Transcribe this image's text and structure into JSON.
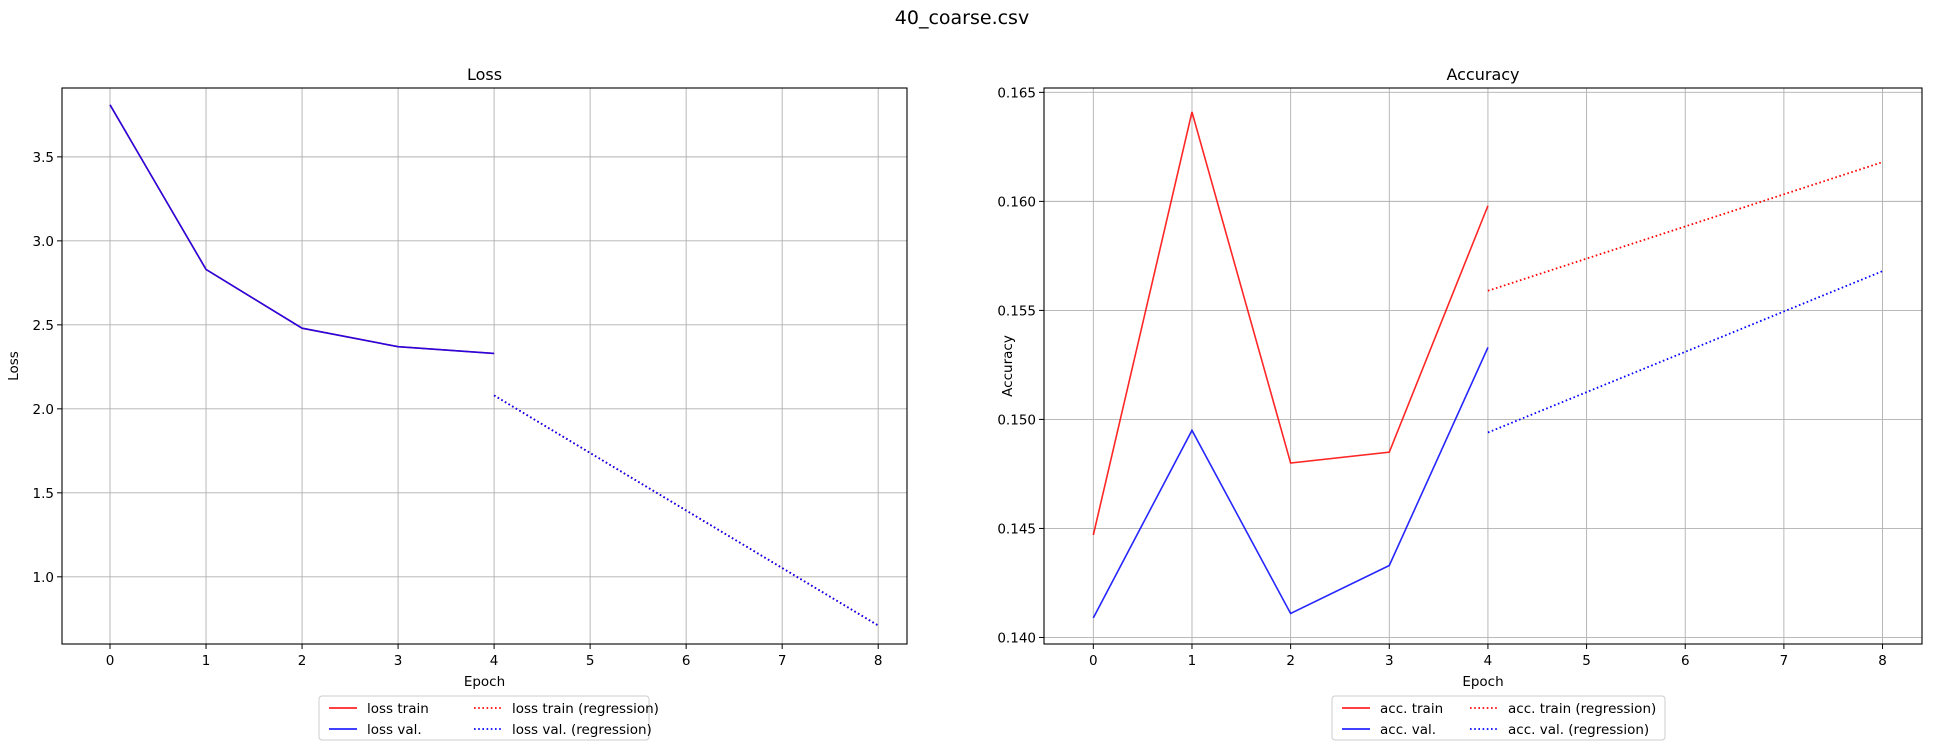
{
  "figure_title": "40_coarse.csv",
  "colors": {
    "train": "#ff0000",
    "val": "#0000ff"
  },
  "chart_data": [
    {
      "type": "line",
      "title": "Loss",
      "xlabel": "Epoch",
      "ylabel": "Loss",
      "xlim": [
        -0.5,
        8.3
      ],
      "ylim": [
        0.6,
        3.91
      ],
      "xticks": [
        0,
        1,
        2,
        3,
        4,
        5,
        6,
        7,
        8
      ],
      "yticks": [
        1.0,
        1.5,
        2.0,
        2.5,
        3.0,
        3.5
      ],
      "ytick_labels": [
        "1.0",
        "1.5",
        "2.0",
        "2.5",
        "3.0",
        "3.5"
      ],
      "grid": true,
      "legend_position": "below",
      "series": [
        {
          "name": "loss train",
          "style": "solid",
          "color": "#ff0000",
          "x": [
            0,
            1,
            2,
            3,
            4
          ],
          "y": [
            3.81,
            2.83,
            2.48,
            2.37,
            2.33
          ]
        },
        {
          "name": "loss val.",
          "style": "solid",
          "color": "#0000ff",
          "x": [
            0,
            1,
            2,
            3,
            4
          ],
          "y": [
            3.81,
            2.83,
            2.48,
            2.37,
            2.33
          ]
        },
        {
          "name": "loss train (regression)",
          "style": "dotted",
          "color": "#ff0000",
          "x": [
            4,
            8
          ],
          "y": [
            2.08,
            0.71
          ]
        },
        {
          "name": "loss val. (regression)",
          "style": "dotted",
          "color": "#0000ff",
          "x": [
            4,
            8
          ],
          "y": [
            2.08,
            0.71
          ]
        }
      ]
    },
    {
      "type": "line",
      "title": "Accuracy",
      "xlabel": "Epoch",
      "ylabel": "Accuracy",
      "xlim": [
        -0.5,
        8.4
      ],
      "ylim": [
        0.1397,
        0.1652
      ],
      "xticks": [
        0,
        1,
        2,
        3,
        4,
        5,
        6,
        7,
        8
      ],
      "yticks": [
        0.14,
        0.145,
        0.15,
        0.155,
        0.16,
        0.165
      ],
      "ytick_labels": [
        "0.140",
        "0.145",
        "0.150",
        "0.155",
        "0.160",
        "0.165"
      ],
      "grid": true,
      "legend_position": "below",
      "series": [
        {
          "name": "acc. train",
          "style": "solid",
          "color": "#ff0000",
          "x": [
            0,
            1,
            2,
            3,
            4
          ],
          "y": [
            0.1447,
            0.1641,
            0.148,
            0.1485,
            0.1598
          ]
        },
        {
          "name": "acc. val.",
          "style": "solid",
          "color": "#0000ff",
          "x": [
            0,
            1,
            2,
            3,
            4
          ],
          "y": [
            0.1409,
            0.1495,
            0.1411,
            0.1433,
            0.1533
          ]
        },
        {
          "name": "acc. train (regression)",
          "style": "dotted",
          "color": "#ff0000",
          "x": [
            4,
            8
          ],
          "y": [
            0.1559,
            0.1618
          ]
        },
        {
          "name": "acc. val. (regression)",
          "style": "dotted",
          "color": "#0000ff",
          "x": [
            4,
            8
          ],
          "y": [
            0.1494,
            0.1568
          ]
        }
      ]
    }
  ]
}
